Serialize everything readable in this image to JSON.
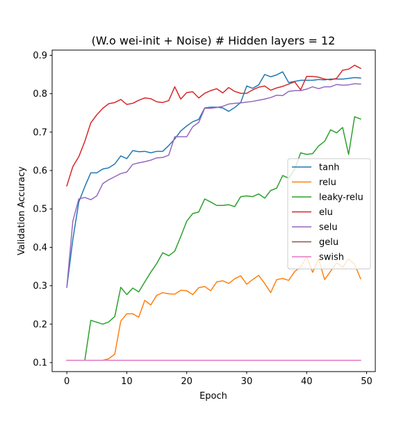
{
  "chart_data": {
    "type": "line",
    "title": "(W.o wei-init + Noise) # Hidden layers = 12",
    "xlabel": "Epoch",
    "ylabel": "Validation Accuracy",
    "xlim": [
      -2.45,
      51.45
    ],
    "ylim": [
      0.0765,
      0.9135
    ],
    "xticks": [
      0,
      10,
      20,
      30,
      40,
      50
    ],
    "yticks": [
      0.1,
      0.2,
      0.3,
      0.4,
      0.5,
      0.6,
      0.7,
      0.8,
      0.9
    ],
    "xtick_labels": [
      "0",
      "10",
      "20",
      "30",
      "40",
      "50"
    ],
    "ytick_labels": [
      "0.1",
      "0.2",
      "0.3",
      "0.4",
      "0.5",
      "0.6",
      "0.7",
      "0.8",
      "0.9"
    ],
    "grid": false,
    "legend_location": "center-right",
    "series": [
      {
        "name": "tanh",
        "color": "#1f77b4",
        "values": [
          0.296,
          0.42,
          0.518,
          0.558,
          0.594,
          0.594,
          0.604,
          0.607,
          0.617,
          0.638,
          0.631,
          0.652,
          0.649,
          0.65,
          0.646,
          0.65,
          0.65,
          0.665,
          0.682,
          0.703,
          0.716,
          0.727,
          0.733,
          0.763,
          0.765,
          0.765,
          0.763,
          0.754,
          0.764,
          0.777,
          0.82,
          0.814,
          0.823,
          0.85,
          0.844,
          0.849,
          0.857,
          0.829,
          0.832,
          0.835,
          0.835,
          0.835,
          0.837,
          0.836,
          0.838,
          0.838,
          0.838,
          0.84,
          0.842,
          0.841
        ]
      },
      {
        "name": "relu",
        "color": "#ff7f0e",
        "values": [
          0.106,
          0.106,
          0.106,
          0.106,
          0.106,
          0.106,
          0.106,
          0.11,
          0.122,
          0.208,
          0.227,
          0.227,
          0.218,
          0.262,
          0.25,
          0.275,
          0.282,
          0.279,
          0.278,
          0.288,
          0.287,
          0.277,
          0.295,
          0.298,
          0.287,
          0.31,
          0.313,
          0.306,
          0.318,
          0.326,
          0.304,
          0.316,
          0.327,
          0.306,
          0.282,
          0.316,
          0.319,
          0.314,
          0.337,
          0.349,
          0.375,
          0.335,
          0.37,
          0.316,
          0.338,
          0.36,
          0.348,
          0.37,
          0.356,
          0.318
        ]
      },
      {
        "name": "leaky-relu",
        "color": "#2ca02c",
        "values": [
          0.106,
          0.106,
          0.106,
          0.106,
          0.21,
          0.205,
          0.2,
          0.206,
          0.22,
          0.296,
          0.277,
          0.294,
          0.284,
          0.31,
          0.335,
          0.358,
          0.386,
          0.378,
          0.39,
          0.428,
          0.468,
          0.488,
          0.492,
          0.526,
          0.518,
          0.509,
          0.509,
          0.511,
          0.506,
          0.532,
          0.534,
          0.532,
          0.539,
          0.528,
          0.548,
          0.554,
          0.587,
          0.58,
          0.603,
          0.646,
          0.642,
          0.644,
          0.664,
          0.676,
          0.706,
          0.698,
          0.712,
          0.642,
          0.74,
          0.734
        ]
      },
      {
        "name": "elu",
        "color": "#d62728",
        "values": [
          0.56,
          0.61,
          0.636,
          0.676,
          0.724,
          0.745,
          0.762,
          0.774,
          0.777,
          0.785,
          0.772,
          0.775,
          0.783,
          0.789,
          0.787,
          0.779,
          0.777,
          0.782,
          0.818,
          0.786,
          0.803,
          0.805,
          0.789,
          0.801,
          0.808,
          0.813,
          0.802,
          0.816,
          0.806,
          0.801,
          0.801,
          0.81,
          0.817,
          0.82,
          0.809,
          0.815,
          0.819,
          0.825,
          0.831,
          0.81,
          0.845,
          0.845,
          0.843,
          0.838,
          0.836,
          0.84,
          0.861,
          0.864,
          0.874,
          0.866
        ]
      },
      {
        "name": "selu",
        "color": "#9467bd",
        "values": [
          0.296,
          0.468,
          0.526,
          0.53,
          0.524,
          0.534,
          0.566,
          0.576,
          0.584,
          0.592,
          0.596,
          0.616,
          0.62,
          0.623,
          0.627,
          0.633,
          0.634,
          0.64,
          0.688,
          0.688,
          0.688,
          0.714,
          0.725,
          0.762,
          0.762,
          0.764,
          0.767,
          0.773,
          0.775,
          0.776,
          0.778,
          0.78,
          0.783,
          0.786,
          0.79,
          0.796,
          0.795,
          0.806,
          0.808,
          0.808,
          0.812,
          0.818,
          0.813,
          0.818,
          0.818,
          0.824,
          0.822,
          0.823,
          0.826,
          0.825
        ]
      },
      {
        "name": "gelu",
        "color": "#8c564b",
        "values": [
          0.106,
          0.106,
          0.106,
          0.106,
          0.106,
          0.106,
          0.106,
          0.106,
          0.106,
          0.106,
          0.106,
          0.106,
          0.106,
          0.106,
          0.106,
          0.106,
          0.106,
          0.106,
          0.106,
          0.106,
          0.106,
          0.106,
          0.106,
          0.106,
          0.106,
          0.106,
          0.106,
          0.106,
          0.106,
          0.106,
          0.106,
          0.106,
          0.106,
          0.106,
          0.106,
          0.106,
          0.106,
          0.106,
          0.106,
          0.106,
          0.106,
          0.106,
          0.106,
          0.106,
          0.106,
          0.106,
          0.106,
          0.106,
          0.106,
          0.106
        ]
      },
      {
        "name": "swish",
        "color": "#e377c2",
        "values": [
          0.106,
          0.106,
          0.106,
          0.106,
          0.106,
          0.106,
          0.106,
          0.106,
          0.106,
          0.106,
          0.106,
          0.106,
          0.106,
          0.106,
          0.106,
          0.106,
          0.106,
          0.106,
          0.106,
          0.106,
          0.106,
          0.106,
          0.106,
          0.106,
          0.106,
          0.106,
          0.106,
          0.106,
          0.106,
          0.106,
          0.106,
          0.106,
          0.106,
          0.106,
          0.106,
          0.106,
          0.106,
          0.106,
          0.106,
          0.106,
          0.106,
          0.106,
          0.106,
          0.106,
          0.106,
          0.106,
          0.106,
          0.106,
          0.106,
          0.106
        ]
      }
    ]
  }
}
